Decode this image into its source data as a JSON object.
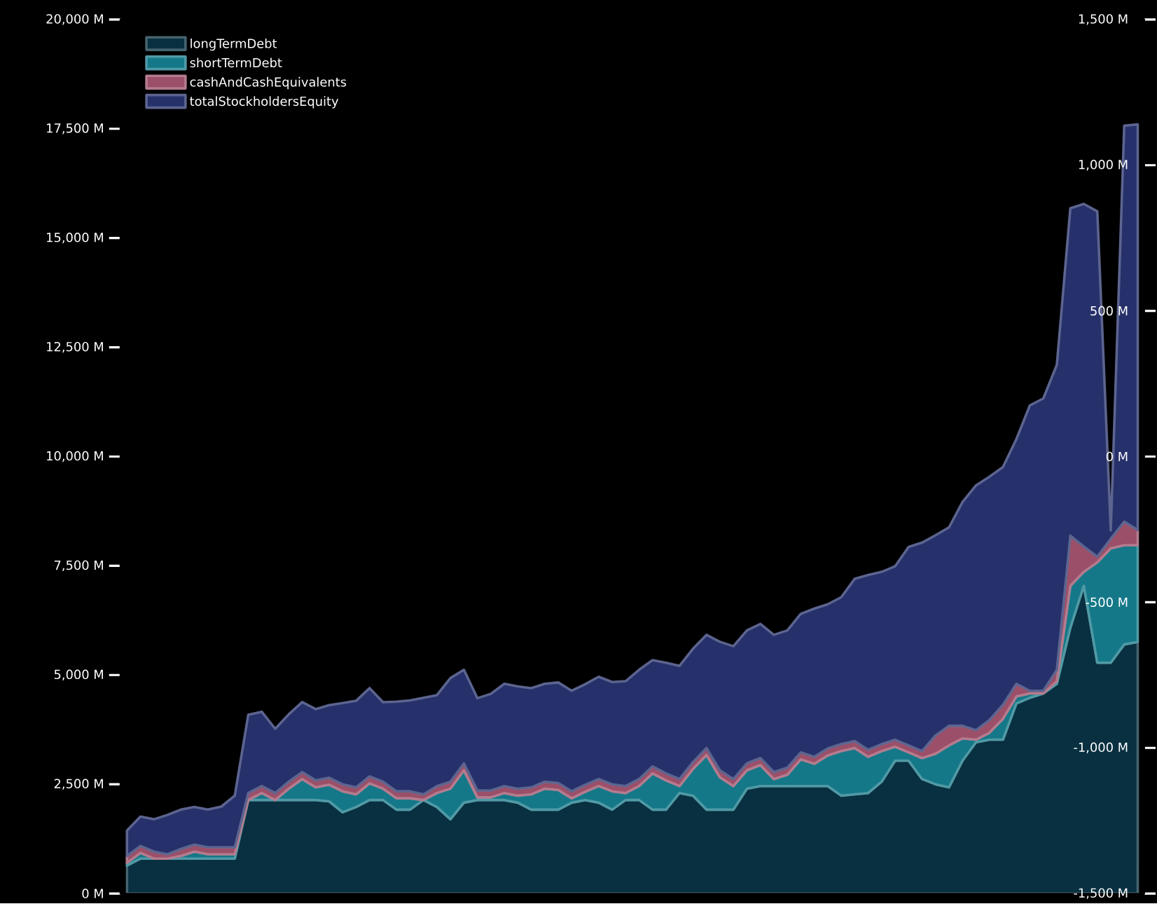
{
  "chart_data": {
    "type": "area",
    "stacked": true,
    "legend": "top left",
    "categories": [
      null,
      null,
      null,
      null,
      null,
      null,
      null,
      null,
      null,
      null,
      null,
      null,
      null,
      null,
      null,
      null,
      null,
      null,
      null,
      null,
      null,
      null,
      null,
      null,
      null,
      null,
      null,
      null,
      null,
      null,
      null,
      null,
      null,
      null,
      null,
      null,
      null,
      null,
      null,
      null,
      null,
      null,
      null,
      null,
      null,
      null,
      null,
      null,
      null,
      null,
      null,
      null,
      null,
      null,
      null,
      null,
      null,
      null,
      null,
      null,
      null,
      null,
      null,
      null,
      null,
      null,
      null,
      null,
      null,
      null,
      null,
      null,
      null,
      null,
      null,
      null
    ],
    "series": [
      {
        "name": "longTermDebt",
        "color": "#083040",
        "values": [
          640,
          800,
          800,
          800,
          800,
          800,
          800,
          800,
          800,
          2140,
          2140,
          2140,
          2140,
          2140,
          2140,
          2110,
          1860,
          1980,
          2140,
          2140,
          1920,
          1920,
          2140,
          1980,
          1700,
          2080,
          2140,
          2140,
          2140,
          2080,
          1920,
          1920,
          1920,
          2080,
          2140,
          2080,
          1920,
          2140,
          2140,
          1920,
          1920,
          2300,
          2240,
          1920,
          1920,
          1920,
          2400,
          2460,
          2460,
          2460,
          2460,
          2460,
          2460,
          2240,
          2270,
          2300,
          2560,
          3040,
          3040,
          2620,
          2500,
          2430,
          3040,
          3460,
          3520,
          3520,
          4350,
          4480,
          4580,
          4800,
          6080,
          7040,
          5280,
          5280,
          5700,
          5760
        ]
      },
      {
        "name": "shortTermDebt",
        "color": "#157888",
        "values": [
          60,
          130,
          0,
          0,
          60,
          160,
          100,
          100,
          100,
          0,
          160,
          0,
          260,
          480,
          290,
          380,
          480,
          290,
          380,
          260,
          260,
          260,
          0,
          320,
          700,
          740,
          60,
          60,
          160,
          160,
          350,
          480,
          450,
          100,
          190,
          380,
          420,
          160,
          320,
          830,
          670,
          160,
          610,
          1250,
          740,
          540,
          420,
          480,
          160,
          260,
          610,
          510,
          700,
          1020,
          1060,
          830,
          700,
          320,
          190,
          480,
          700,
          960,
          510,
          60,
          160,
          480,
          160,
          100,
          0,
          60,
          960,
          320,
          2300,
          2620,
          2270,
          2210
        ]
      },
      {
        "name": "cashAndCashEquivalents",
        "color": "#9b4f68",
        "values": [
          160,
          160,
          160,
          100,
          160,
          160,
          160,
          160,
          160,
          160,
          160,
          160,
          160,
          160,
          160,
          160,
          160,
          160,
          160,
          160,
          160,
          160,
          130,
          160,
          160,
          160,
          160,
          160,
          160,
          160,
          160,
          160,
          160,
          160,
          160,
          160,
          160,
          160,
          160,
          160,
          160,
          160,
          160,
          160,
          160,
          160,
          160,
          160,
          160,
          160,
          160,
          160,
          160,
          160,
          160,
          160,
          160,
          160,
          160,
          160,
          420,
          450,
          290,
          220,
          290,
          320,
          290,
          60,
          60,
          260,
          1150,
          580,
          130,
          220,
          540,
          350
        ]
      },
      {
        "name": "totalStockholdersEquity",
        "color": "#26306a",
        "values": [
          580,
          670,
          740,
          900,
          900,
          860,
          860,
          930,
          1180,
          1790,
          1700,
          1470,
          1540,
          1600,
          1630,
          1660,
          1860,
          1980,
          2020,
          1820,
          2050,
          2080,
          2210,
          2080,
          2370,
          2140,
          2110,
          2210,
          2340,
          2340,
          2270,
          2240,
          2300,
          2300,
          2300,
          2340,
          2340,
          2400,
          2500,
          2430,
          2530,
          2590,
          2590,
          2590,
          2940,
          3040,
          3040,
          3070,
          3140,
          3140,
          3170,
          3390,
          3300,
          3360,
          3710,
          4000,
          3940,
          3970,
          4540,
          4770,
          4580,
          4540,
          5120,
          5600,
          5570,
          5440,
          5600,
          6530,
          6690,
          6980,
          7490,
          7840,
          7900,
          190,
          9060,
          9280
        ]
      }
    ],
    "ylim": [
      0,
      20000
    ],
    "yticks": [
      {
        "value": 0,
        "label": "0 M"
      },
      {
        "value": 2500,
        "label": "2,500 M"
      },
      {
        "value": 5000,
        "label": "5,000 M"
      },
      {
        "value": 7500,
        "label": "7,500 M"
      },
      {
        "value": 10000,
        "label": "10,000 M"
      },
      {
        "value": 12500,
        "label": "12,500 M"
      },
      {
        "value": 15000,
        "label": "15,000 M"
      },
      {
        "value": 17500,
        "label": "17,500 M"
      },
      {
        "value": 20000,
        "label": "20,000 M"
      }
    ],
    "y2lim": [
      -1500,
      1500
    ],
    "y2ticks": [
      {
        "value": -1500,
        "label": "-1,500 M"
      },
      {
        "value": -1000,
        "label": "-1,000 M"
      },
      {
        "value": -500,
        "label": "-500 M"
      },
      {
        "value": 0,
        "label": "0 M"
      },
      {
        "value": 500,
        "label": "500 M"
      },
      {
        "value": 1000,
        "label": "1,000 M"
      },
      {
        "value": 1500,
        "label": "1,500 M"
      }
    ]
  }
}
